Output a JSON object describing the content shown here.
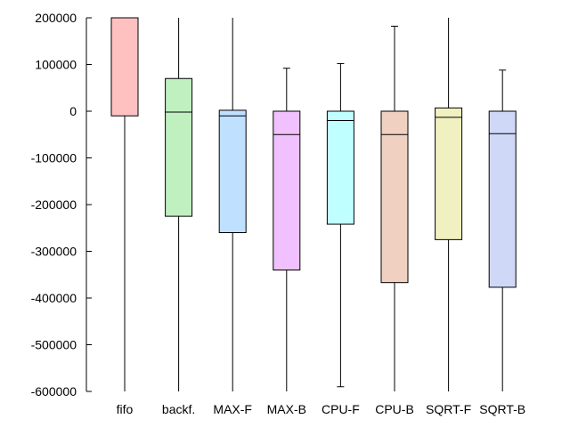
{
  "chart_data": {
    "type": "boxplot",
    "title": "",
    "xlabel": "",
    "ylabel": "",
    "ylim": [
      -600000,
      200000
    ],
    "yticks": [
      200000,
      100000,
      0,
      -100000,
      -200000,
      -300000,
      -400000,
      -500000,
      -600000
    ],
    "ytick_labels": [
      "200000",
      "100000",
      "0",
      "-100000",
      "-200000",
      "-300000",
      "-400000",
      "-500000",
      "-600000"
    ],
    "grid": false,
    "legend": "none",
    "categories": [
      "fifo",
      "backf.",
      "MAX-F",
      "MAX-B",
      "CPU-F",
      "CPU-B",
      "SQRT-F",
      "SQRT-B"
    ],
    "boxes": [
      {
        "label": "fifo",
        "whisker_low": -600000,
        "q1": -10000,
        "median": 200000,
        "q3": 200000,
        "whisker_high": 200000,
        "color": "#ffc0c0"
      },
      {
        "label": "backf.",
        "whisker_low": -600000,
        "q1": -225000,
        "median": -2000,
        "q3": 70000,
        "whisker_high": 200000,
        "color": "#c0f0c0"
      },
      {
        "label": "MAX-F",
        "whisker_low": -600000,
        "q1": -260000,
        "median": -10000,
        "q3": 2000,
        "whisker_high": 200000,
        "color": "#c0e0ff"
      },
      {
        "label": "MAX-B",
        "whisker_low": -600000,
        "q1": -340000,
        "median": -50000,
        "q3": 0,
        "whisker_high": 92000,
        "color": "#f0c0ff"
      },
      {
        "label": "CPU-F",
        "whisker_low": -590000,
        "q1": -242000,
        "median": -20000,
        "q3": 0,
        "whisker_high": 102000,
        "color": "#c0ffff"
      },
      {
        "label": "CPU-B",
        "whisker_low": -600000,
        "q1": -367000,
        "median": -50000,
        "q3": 0,
        "whisker_high": 182000,
        "color": "#f0d0c0"
      },
      {
        "label": "SQRT-F",
        "whisker_low": -600000,
        "q1": -275000,
        "median": -13000,
        "q3": 7000,
        "whisker_high": 200000,
        "color": "#f0f0c0"
      },
      {
        "label": "SQRT-B",
        "whisker_low": -600000,
        "q1": -377000,
        "median": -48000,
        "q3": 0,
        "whisker_high": 88000,
        "color": "#d0d8f8"
      }
    ]
  }
}
